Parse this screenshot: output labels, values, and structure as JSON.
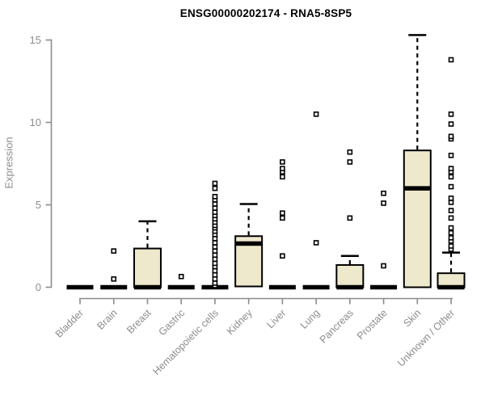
{
  "chart_data": {
    "type": "boxplot",
    "title": "ENSG00000202174 - RNA5-8SP5",
    "xlabel": "",
    "ylabel": "Expression",
    "ylim": [
      0,
      15
    ],
    "yticks": [
      0,
      5,
      10,
      15
    ],
    "grid": false,
    "legend": "none",
    "colors": {
      "box_fill": "#EEE8CD",
      "box_border": "#000000",
      "median": "#000000",
      "whisker": "#000000",
      "outlier": "#000000",
      "axis": "#8C8C8C",
      "tick_label": "#8C8C8C",
      "title": "#000000"
    },
    "categories": [
      "Bladder",
      "Brain",
      "Breast",
      "Gastric",
      "Hematopoietic cells",
      "Kidney",
      "Liver",
      "Lung",
      "Pancreas",
      "Prostate",
      "Skin",
      "Unknown / Other"
    ],
    "series": [
      {
        "label": "Bladder",
        "q1": 0,
        "median": 0,
        "q3": 0,
        "whisker_low": 0,
        "whisker_high": 0,
        "outliers": []
      },
      {
        "label": "Brain",
        "q1": 0,
        "median": 0,
        "q3": 0,
        "whisker_low": 0,
        "whisker_high": 0,
        "outliers": [
          0.5,
          2.2
        ]
      },
      {
        "label": "Breast",
        "q1": 0,
        "median": 0,
        "q3": 2.35,
        "whisker_low": 0,
        "whisker_high": 4.0,
        "outliers": []
      },
      {
        "label": "Gastric",
        "q1": 0,
        "median": 0,
        "q3": 0,
        "whisker_low": 0,
        "whisker_high": 0,
        "outliers": [
          0.65
        ]
      },
      {
        "label": "Hematopoietic cells",
        "q1": 0,
        "median": 0,
        "q3": 0,
        "whisker_low": 0,
        "whisker_high": 0,
        "outliers": [
          0.1,
          0.25,
          0.5,
          0.75,
          1.0,
          1.25,
          1.45,
          1.7,
          1.95,
          2.2,
          2.45,
          2.7,
          2.95,
          3.2,
          3.4,
          3.6,
          3.75,
          3.95,
          4.15,
          4.35,
          4.55,
          4.8,
          5.05,
          5.3,
          5.5,
          6.0,
          6.3
        ]
      },
      {
        "label": "Kidney",
        "q1": 0.05,
        "median": 2.65,
        "q3": 3.1,
        "whisker_low": 0.05,
        "whisker_high": 5.05,
        "outliers": []
      },
      {
        "label": "Liver",
        "q1": 0,
        "median": 0,
        "q3": 0,
        "whisker_low": 0,
        "whisker_high": 0,
        "outliers": [
          1.9,
          4.2,
          4.5,
          6.7,
          7.0,
          7.2,
          7.6
        ]
      },
      {
        "label": "Lung",
        "q1": 0,
        "median": 0,
        "q3": 0,
        "whisker_low": 0,
        "whisker_high": 0,
        "outliers": [
          2.7,
          10.5
        ]
      },
      {
        "label": "Pancreas",
        "q1": 0,
        "median": 0,
        "q3": 1.35,
        "whisker_low": 0,
        "whisker_high": 1.9,
        "outliers": [
          4.2,
          7.6,
          8.2
        ]
      },
      {
        "label": "Prostate",
        "q1": 0,
        "median": 0,
        "q3": 0,
        "whisker_low": 0,
        "whisker_high": 0,
        "outliers": [
          1.3,
          5.1,
          5.7
        ]
      },
      {
        "label": "Skin",
        "q1": 0,
        "median": 6.0,
        "q3": 8.3,
        "whisker_low": 0,
        "whisker_high": 15.3,
        "outliers": []
      },
      {
        "label": "Unknown / Other",
        "q1": 0,
        "median": 0,
        "q3": 0.85,
        "whisker_low": 0,
        "whisker_high": 2.1,
        "outliers": [
          2.3,
          2.5,
          2.8,
          3.0,
          3.3,
          3.6,
          4.2,
          4.65,
          5.15,
          5.4,
          6.1,
          6.7,
          7.0,
          7.2,
          8.0,
          9.0,
          9.15,
          9.9,
          10.5,
          13.8
        ]
      }
    ]
  }
}
